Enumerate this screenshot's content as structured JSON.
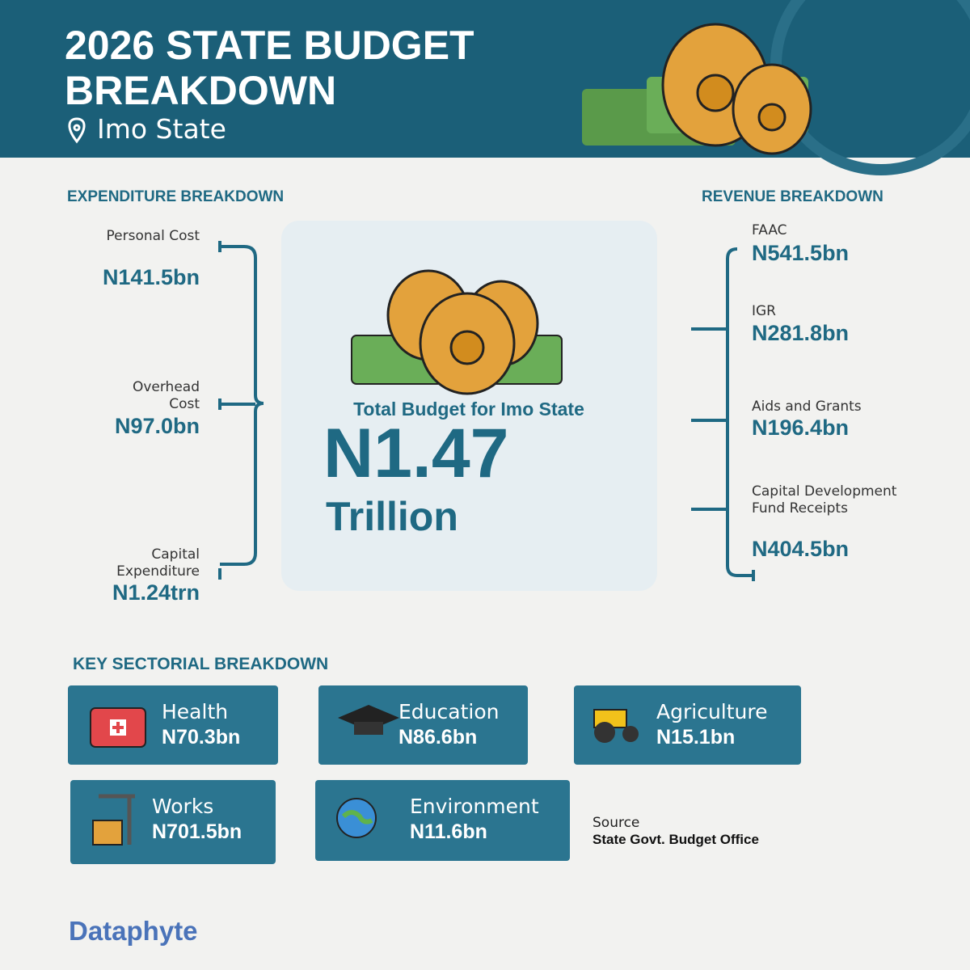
{
  "header": {
    "title": "2026 STATE BUDGET BREAKDOWN",
    "location": "Imo State"
  },
  "expenditure": {
    "heading": "EXPENDITURE BREAKDOWN",
    "items": [
      {
        "label": "Personal Cost",
        "value": "N141.5bn"
      },
      {
        "label": "Overhead Cost",
        "value": "N97.0bn"
      },
      {
        "label": "Capital Expenditure",
        "value": "N1.24trn"
      }
    ]
  },
  "total": {
    "label": "Total Budget for Imo State",
    "value": "N1.47",
    "unit": "Trillion"
  },
  "revenue": {
    "heading": "REVENUE BREAKDOWN",
    "items": [
      {
        "label": "FAAC",
        "value": "N541.5bn"
      },
      {
        "label": "IGR",
        "value": "N281.8bn"
      },
      {
        "label": "Aids and Grants",
        "value": "N196.4bn"
      },
      {
        "label": "Capital Development Fund Receipts",
        "value": "N404.5bn"
      }
    ]
  },
  "sectors": {
    "heading": "KEY SECTORIAL BREAKDOWN",
    "items": [
      {
        "name": "Health",
        "value": "N70.3bn"
      },
      {
        "name": "Education",
        "value": "N86.6bn"
      },
      {
        "name": "Agriculture",
        "value": "N15.1bn"
      },
      {
        "name": "Works",
        "value": "N701.5bn"
      },
      {
        "name": "Environment",
        "value": "N11.6bn"
      }
    ]
  },
  "source": {
    "label": "Source",
    "text": "State Govt. Budget Office"
  },
  "brand": "Dataphyte"
}
